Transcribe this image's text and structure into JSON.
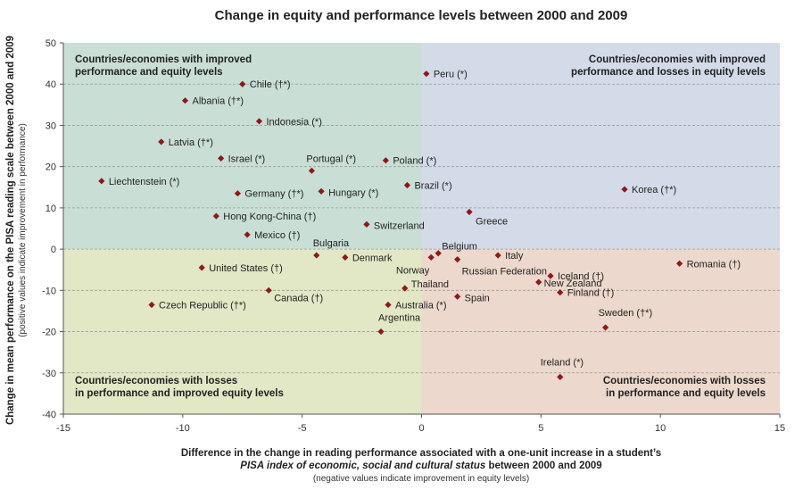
{
  "chart_data": {
    "type": "scatter",
    "title": "Change in equity and performance levels between 2000 and 2009",
    "xlabel_line1": "Difference in the change in reading performance associated with a one-unit increase in a student’s",
    "xlabel_line2_italic": "PISA index of economic, social and cultural status",
    "xlabel_line2_rest": " between 2000 and 2009",
    "xlabel_note": "(negative values indicate improvement in equity levels)",
    "ylabel": "Change in mean performance on the PISA reading scale between 2000 and 2009",
    "ylabel_note": "(positive values indicate improvement in performance)",
    "xlim": [
      -15,
      15
    ],
    "ylim": [
      -40,
      50
    ],
    "x_ticks": [
      -15,
      -10,
      -5,
      0,
      5,
      10,
      15
    ],
    "y_ticks": [
      -40,
      -30,
      -20,
      -10,
      0,
      10,
      20,
      30,
      40,
      50
    ],
    "grid": "horizontal dashed",
    "quadrants": {
      "top_left": [
        "Countries/economies with improved",
        "performance and equity levels"
      ],
      "top_right": [
        "Countries/economies with improved",
        "performance and losses in equity levels"
      ],
      "bottom_left": [
        "Countries/economies with losses",
        "in performance and improved equity levels"
      ],
      "bottom_right": [
        "Countries/economies with losses",
        "in performance and equity levels"
      ]
    },
    "colors": {
      "top_left": "#c9dfd5",
      "top_right": "#d3dbe8",
      "bottom_left": "#e2e7c5",
      "bottom_right": "#ecd8cc",
      "marker": "#8b1a1a",
      "grid": "#9a9a9a"
    },
    "points": [
      {
        "label": "Peru (*)",
        "x": 0.2,
        "y": 42.5
      },
      {
        "label": "Chile (†*)",
        "x": -7.5,
        "y": 40.0
      },
      {
        "label": "Albania (†*)",
        "x": -9.9,
        "y": 36.0
      },
      {
        "label": "Indonesia (*)",
        "x": -6.8,
        "y": 31.0
      },
      {
        "label": "Latvia (†*)",
        "x": -10.9,
        "y": 26.0
      },
      {
        "label": "Israel (*)",
        "x": -8.4,
        "y": 22.0
      },
      {
        "label": "Portugal (*)",
        "x": -4.6,
        "y": 19.0
      },
      {
        "label": "Poland (*)",
        "x": -1.5,
        "y": 21.5
      },
      {
        "label": "Liechtenstein (*)",
        "x": -13.4,
        "y": 16.5
      },
      {
        "label": "Germany (†*)",
        "x": -7.7,
        "y": 13.5
      },
      {
        "label": "Hungary (*)",
        "x": -4.2,
        "y": 14.0
      },
      {
        "label": "Brazil (*)",
        "x": -0.6,
        "y": 15.5
      },
      {
        "label": "Korea (†*)",
        "x": 8.5,
        "y": 14.5
      },
      {
        "label": "Hong Kong-China (†)",
        "x": -8.6,
        "y": 8.0
      },
      {
        "label": "Switzerland",
        "x": -2.3,
        "y": 6.0
      },
      {
        "label": "Greece",
        "x": 2.0,
        "y": 9.0
      },
      {
        "label": "Mexico (†)",
        "x": -7.3,
        "y": 3.5
      },
      {
        "label": "Bulgaria",
        "x": -4.4,
        "y": -1.5
      },
      {
        "label": "Denmark",
        "x": -3.2,
        "y": -2.0
      },
      {
        "label": "Belgium",
        "x": 0.7,
        "y": -1.0
      },
      {
        "label": "Norway",
        "x": 0.4,
        "y": -2.0
      },
      {
        "label": "Russian Federation",
        "x": 1.5,
        "y": -2.5
      },
      {
        "label": "Italy",
        "x": 3.2,
        "y": -1.5
      },
      {
        "label": "Romania (†)",
        "x": 10.8,
        "y": -3.5
      },
      {
        "label": "United States (†)",
        "x": -9.2,
        "y": -4.5
      },
      {
        "label": "Iceland (†)",
        "x": 5.4,
        "y": -6.5
      },
      {
        "label": "New Zealand",
        "x": 4.9,
        "y": -8.0
      },
      {
        "label": "Thailand",
        "x": -0.7,
        "y": -9.5
      },
      {
        "label": "Canada (†)",
        "x": -6.4,
        "y": -10.0
      },
      {
        "label": "Finland (†)",
        "x": 5.8,
        "y": -10.5
      },
      {
        "label": "Spain",
        "x": 1.5,
        "y": -11.5
      },
      {
        "label": "Czech Republic (†*)",
        "x": -11.3,
        "y": -13.5
      },
      {
        "label": "Australia (*)",
        "x": -1.4,
        "y": -13.5
      },
      {
        "label": "Sweden (†*)",
        "x": 7.7,
        "y": -19.0
      },
      {
        "label": "Argentina",
        "x": -1.7,
        "y": -20.0
      },
      {
        "label": "Ireland (*)",
        "x": 5.8,
        "y": -31.0
      }
    ]
  }
}
